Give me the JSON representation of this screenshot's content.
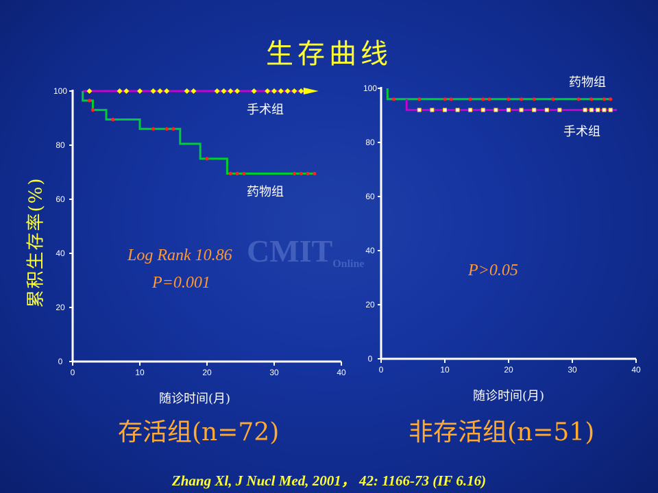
{
  "title": "生存曲线",
  "y_axis_label": "累积生存率(%)",
  "watermark": {
    "main": "CMIT",
    "sub": "Online"
  },
  "citation": "Zhang Xl, J Nucl Med, 2001， 42: 1166-73 (IF 6.16)",
  "colors": {
    "surgery_left": "#cc00cc",
    "drug_left": "#00cc33",
    "surgery_right": "#cc00cc",
    "drug_right": "#00cc33",
    "censor_dot": "#ff2222",
    "censor_diamond": "#ffff00"
  },
  "chart_data": [
    {
      "type": "line",
      "group_label": "存活组(n=72)",
      "xlabel": "随诊时间(月)",
      "xlim": [
        0,
        40
      ],
      "ylim": [
        0,
        100
      ],
      "xticks": [
        "0",
        "10",
        "20",
        "30",
        "40"
      ],
      "yticks": [
        "0",
        "20",
        "40",
        "60",
        "80",
        "100"
      ],
      "annotations": [
        "Log Rank 10.86",
        "P=0.001"
      ],
      "series": [
        {
          "name": "手术组",
          "step": [
            [
              1.5,
              100
            ],
            [
              36,
              100
            ]
          ],
          "censored": [
            2.5,
            7,
            8,
            10,
            12,
            13,
            14,
            17,
            18,
            21.5,
            22.5,
            23.5,
            24.5,
            27,
            29,
            30,
            31,
            32,
            33,
            34,
            35
          ]
        },
        {
          "name": "药物组",
          "step": [
            [
              1.5,
              100
            ],
            [
              1.5,
              96.5
            ],
            [
              3,
              96.5
            ],
            [
              3,
              93
            ],
            [
              5,
              93
            ],
            [
              5,
              89.5
            ],
            [
              10,
              89.5
            ],
            [
              10,
              86
            ],
            [
              16,
              86
            ],
            [
              16,
              80.5
            ],
            [
              19,
              80.5
            ],
            [
              19,
              75
            ],
            [
              23,
              75
            ],
            [
              23,
              69.5
            ],
            [
              36,
              69.5
            ]
          ],
          "censored": [
            2.5,
            3,
            6,
            12,
            14,
            15,
            20,
            23.5,
            24.5,
            25.5,
            33,
            34,
            35,
            36
          ]
        }
      ]
    },
    {
      "type": "line",
      "group_label": "非存活组(n=51)",
      "xlabel": "随诊时间(月)",
      "xlim": [
        0,
        40
      ],
      "ylim": [
        0,
        100
      ],
      "xticks": [
        "0",
        "10",
        "20",
        "30",
        "40"
      ],
      "yticks": [
        "0",
        "20",
        "40",
        "60",
        "80",
        "100"
      ],
      "annotations": [
        "P>0.05"
      ],
      "series": [
        {
          "name": "药物组",
          "step": [
            [
              1,
              100
            ],
            [
              1,
              96
            ],
            [
              36,
              96
            ]
          ],
          "censored": [
            2,
            6,
            10,
            11,
            14,
            16,
            17,
            20,
            22,
            24,
            27,
            31,
            33,
            35,
            36
          ]
        },
        {
          "name": "手术组",
          "step": [
            [
              4,
              96
            ],
            [
              4,
              92
            ],
            [
              37,
              92
            ]
          ],
          "censored": [
            6,
            8,
            10,
            12,
            14,
            16,
            18,
            20,
            22,
            24,
            26,
            28,
            32,
            33,
            34,
            35,
            36
          ]
        }
      ]
    }
  ]
}
